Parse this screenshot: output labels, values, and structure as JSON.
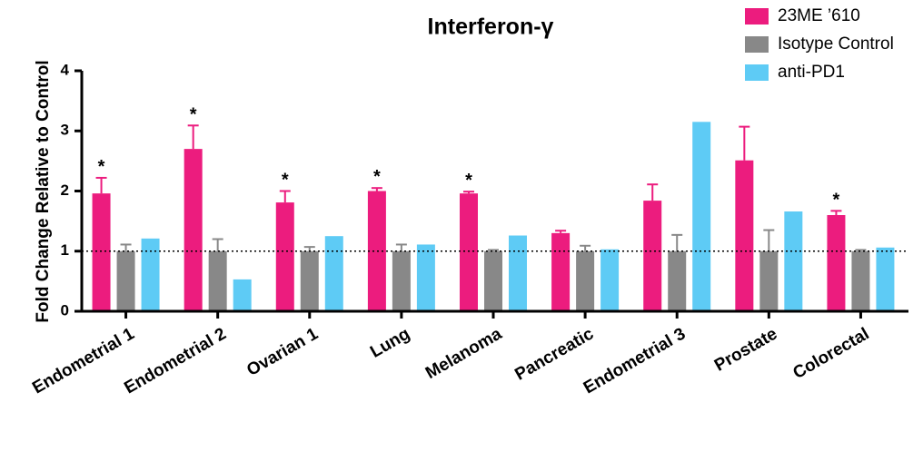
{
  "chart_data": {
    "type": "bar",
    "title": "Interferon-γ",
    "y_label": "Fold Change Relative to Control",
    "categories": [
      "Endometrial 1",
      "Endometrial 2",
      "Ovarian 1",
      "Lung",
      "Melanoma",
      "Pancreatic",
      "Endometrial 3",
      "Prostate",
      "Colorectal"
    ],
    "series": [
      {
        "name": "23ME ’610",
        "color": "#ec1c7e",
        "values": [
          1.96,
          2.7,
          1.81,
          2.0,
          1.96,
          1.3,
          1.84,
          2.51,
          1.6
        ],
        "errors": [
          0.26,
          0.39,
          0.19,
          0.05,
          0.03,
          0.04,
          0.27,
          0.56,
          0.07
        ],
        "significance": [
          "*",
          "*",
          "*",
          "*",
          "*",
          null,
          null,
          null,
          "*"
        ]
      },
      {
        "name": "Isotype Control",
        "color": "#888888",
        "values": [
          1.0,
          1.0,
          1.0,
          1.0,
          1.0,
          1.0,
          1.0,
          1.0,
          1.0
        ],
        "errors": [
          0.11,
          0.2,
          0.07,
          0.11,
          0.02,
          0.09,
          0.27,
          0.35,
          0.02
        ]
      },
      {
        "name": "anti-PD1",
        "color": "#5ecbf5",
        "values": [
          1.21,
          0.53,
          1.25,
          1.11,
          1.26,
          1.03,
          3.15,
          1.66,
          1.06
        ]
      }
    ],
    "reference_line": 1,
    "ylim": [
      0,
      4
    ],
    "yticks": [
      0,
      1,
      2,
      3,
      4
    ]
  }
}
